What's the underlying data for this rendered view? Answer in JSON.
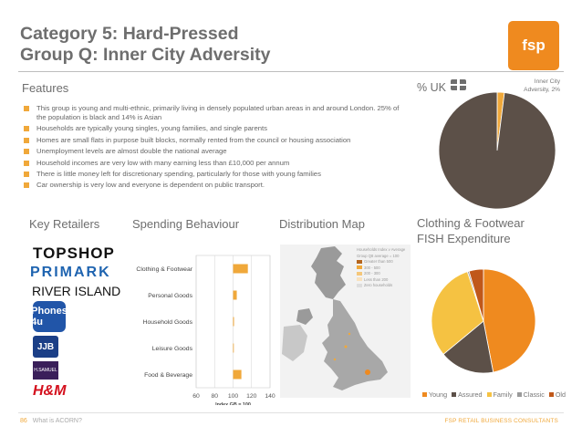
{
  "header": {
    "title_line1": "Category 5: Hard-Pressed",
    "title_line2": "Group Q: Inner City Adversity",
    "logo_text": "fsp"
  },
  "features": {
    "heading": "Features",
    "items": [
      "This group is young and multi-ethnic, primarily living in densely populated urban areas in and around London. 25% of the population is black and 14% is Asian",
      "Households are typically young singles, young families, and single parents",
      "Homes are small flats in purpose built blocks, normally rented from the council or housing association",
      "Unemployment levels are almost double the national average",
      "Household incomes are very low with many earning less than £10,000 per annum",
      "There is little money left for discretionary spending, particularly for those with young families",
      "Car ownership is very low and everyone is dependent on public transport."
    ]
  },
  "uk_share": {
    "heading": "% UK",
    "flag_icon": "uk-flag-icon",
    "label": "Inner City Adversity, 2%"
  },
  "key_retailers": {
    "heading": "Key Retailers",
    "logos": [
      "TOPSHOP",
      "PRIMARK",
      "RIVER ISLAND",
      "Phones 4u",
      "JJB",
      "H.SAMUEL",
      "H&M"
    ]
  },
  "spending": {
    "heading": "Spending Behaviour"
  },
  "distribution": {
    "heading": "Distribution Map",
    "legend_title": "Households Index v Average",
    "legend_sub": "Group Q8 average = 100",
    "legend_items": [
      {
        "label": "Greater than 500",
        "color": "#b5651d"
      },
      {
        "label": "300 - 500",
        "color": "#f0a83a"
      },
      {
        "label": "200 - 300",
        "color": "#f5c77a"
      },
      {
        "label": "Less than 200",
        "color": "#f9e2bd"
      },
      {
        "label": "Zero households",
        "color": "#dddddd"
      }
    ]
  },
  "clothing": {
    "heading_line1": "Clothing & Footwear",
    "heading_line2": "FISH Expenditure"
  },
  "footer": {
    "page_number": "86",
    "left_text": "What is ACORN?",
    "right_text": "FSP RETAIL BUSINESS CONSULTANTS"
  },
  "chart_data": [
    {
      "type": "pie",
      "labels": [
        "Inner City Adversity",
        "Rest of UK"
      ],
      "values": [
        2,
        98
      ],
      "colors": [
        "#f0a83a",
        "#5c5048"
      ]
    },
    {
      "type": "bar",
      "orientation": "horizontal",
      "categories": [
        "Clothing & Footwear",
        "Personal Goods",
        "Household Goods",
        "Leisure Goods",
        "Food & Beverage"
      ],
      "values": [
        116,
        104,
        101,
        100,
        109
      ],
      "xlabel": "Index GB = 100",
      "xlim": [
        60,
        140
      ],
      "xticks": [
        60,
        80,
        100,
        120,
        140
      ],
      "color": "#f0a83a"
    },
    {
      "type": "pie",
      "labels": [
        "Young",
        "Assured",
        "Family",
        "Classic",
        "Old"
      ],
      "values": [
        47,
        17,
        31,
        0.5,
        4.5
      ],
      "colors": [
        "#ef8a1f",
        "#5c5048",
        "#f5c242",
        "#9a9a9a",
        "#c0581a"
      ]
    }
  ]
}
